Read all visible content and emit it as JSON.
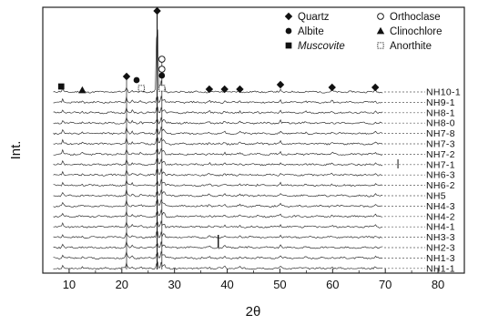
{
  "chart_data": {
    "type": "line",
    "title": "",
    "xlabel": "2θ",
    "ylabel": "Int.",
    "xlim": [
      5,
      85
    ],
    "xticks": [
      10,
      20,
      30,
      40,
      50,
      60,
      70,
      80
    ],
    "grid": false,
    "legend_position": "top-right",
    "legend": [
      {
        "name": "Quartz",
        "marker": "diamond"
      },
      {
        "name": "Orthoclase",
        "marker": "circle-open"
      },
      {
        "name": "Albite",
        "marker": "circle"
      },
      {
        "name": "Clinochlore",
        "marker": "triangle"
      },
      {
        "name": "Muscovite",
        "marker": "square"
      },
      {
        "name": "Anorthite",
        "marker": "square-open"
      }
    ],
    "series_labels": [
      "NH10-1",
      "NH9-1",
      "NH8-1",
      "NH8-0",
      "NH7-8",
      "NH7-3",
      "NH7-2",
      "NH7-1",
      "NH6-3",
      "NH6-2",
      "NH5",
      "NH4-3",
      "NH4-2",
      "NH4-1",
      "NH3-3",
      "NH2-3",
      "NH1-3",
      "NH1-1"
    ],
    "peaks": [
      {
        "two_theta": 8.8,
        "height": 0.45,
        "phase": "Muscovite"
      },
      {
        "two_theta": 12.5,
        "height": 0.15,
        "phase": "Clinochlore"
      },
      {
        "two_theta": 20.9,
        "height": 0.7,
        "phase": "Quartz"
      },
      {
        "two_theta": 22.0,
        "height": 0.25,
        "phase": "Albite"
      },
      {
        "two_theta": 23.6,
        "height": 0.2,
        "phase": ""
      },
      {
        "two_theta": 26.7,
        "height": 3.6,
        "phase": "Quartz"
      },
      {
        "two_theta": 27.5,
        "height": 1.6,
        "phase": "Orthoclase"
      },
      {
        "two_theta": 28.0,
        "height": 1.2,
        "phase": "Albite"
      },
      {
        "two_theta": 36.6,
        "height": 0.22,
        "phase": "Quartz"
      },
      {
        "two_theta": 39.5,
        "height": 0.22,
        "phase": "Quartz"
      },
      {
        "two_theta": 42.4,
        "height": 0.2,
        "phase": "Quartz"
      },
      {
        "two_theta": 45.8,
        "height": 0.12,
        "phase": ""
      },
      {
        "two_theta": 50.1,
        "height": 0.3,
        "phase": "Quartz"
      },
      {
        "two_theta": 54.9,
        "height": 0.12,
        "phase": ""
      },
      {
        "two_theta": 59.9,
        "height": 0.22,
        "phase": "Quartz"
      },
      {
        "two_theta": 68.1,
        "height": 0.25,
        "phase": "Quartz"
      }
    ],
    "phase_markers": [
      {
        "two_theta": 8.5,
        "symbol": "square",
        "tier": 0
      },
      {
        "two_theta": 12.5,
        "symbol": "triangle",
        "tier": 0
      },
      {
        "two_theta": 20.9,
        "symbol": "diamond",
        "tier": 1
      },
      {
        "two_theta": 22.8,
        "symbol": "circle",
        "tier": 1
      },
      {
        "two_theta": 23.7,
        "symbol": "square-open",
        "tier": 0
      },
      {
        "two_theta": 26.7,
        "symbol": "diamond",
        "tier": 5
      },
      {
        "two_theta": 27.6,
        "symbol": "circle-open",
        "tier": 3
      },
      {
        "two_theta": 27.6,
        "symbol": "circle-open",
        "tier": 2
      },
      {
        "two_theta": 27.6,
        "symbol": "circle",
        "tier": 1
      },
      {
        "two_theta": 27.6,
        "symbol": "square-open",
        "tier": 0
      },
      {
        "two_theta": 36.6,
        "symbol": "diamond",
        "tier": 0
      },
      {
        "two_theta": 39.5,
        "symbol": "diamond",
        "tier": 0
      },
      {
        "two_theta": 42.4,
        "symbol": "diamond",
        "tier": 0
      },
      {
        "two_theta": 50.1,
        "symbol": "diamond",
        "tier": 0
      },
      {
        "two_theta": 59.9,
        "symbol": "diamond",
        "tier": 0
      },
      {
        "two_theta": 68.1,
        "symbol": "diamond",
        "tier": 0
      }
    ]
  }
}
